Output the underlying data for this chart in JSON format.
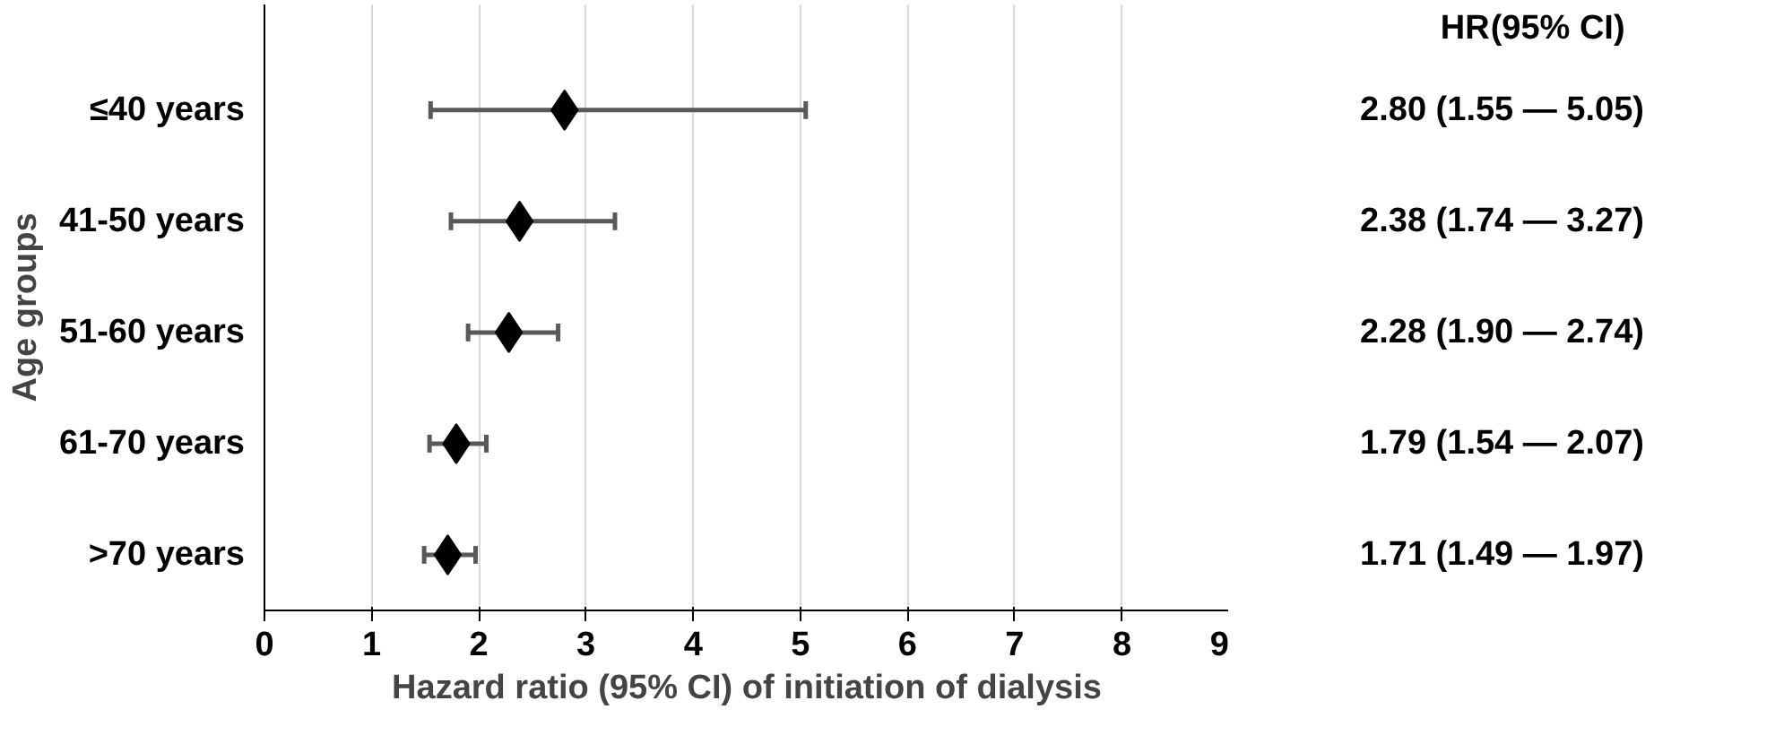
{
  "chart_data": {
    "type": "scatter",
    "orientation": "horizontal",
    "xlabel": "Hazard ratio (95% CI) of initiation of dialysis",
    "ylabel": "Age groups",
    "categories": [
      "≤40 years",
      "41-50 years",
      "51-60 years",
      "61-70 years",
      ">70 years"
    ],
    "values": [
      2.8,
      2.38,
      2.28,
      1.79,
      1.71
    ],
    "errors": [
      [
        1.55,
        5.05
      ],
      [
        1.74,
        3.27
      ],
      [
        1.9,
        2.74
      ],
      [
        1.54,
        2.07
      ],
      [
        1.49,
        1.97
      ]
    ],
    "value_labels": [
      "2.80 (1.55 — 5.05)",
      "2.38 (1.74 — 3.27)",
      "2.28 (1.90 — 2.74)",
      "1.79 (1.54 — 2.07)",
      "1.71 (1.49 — 1.97)"
    ],
    "annotations": [
      "HR",
      "(95% CI)"
    ],
    "color": "#000000",
    "xlim": [
      0,
      9
    ],
    "xticks": [
      0,
      1,
      2,
      3,
      4,
      5,
      6,
      7,
      8,
      9
    ],
    "grid": "x",
    "marker": "diamond"
  }
}
